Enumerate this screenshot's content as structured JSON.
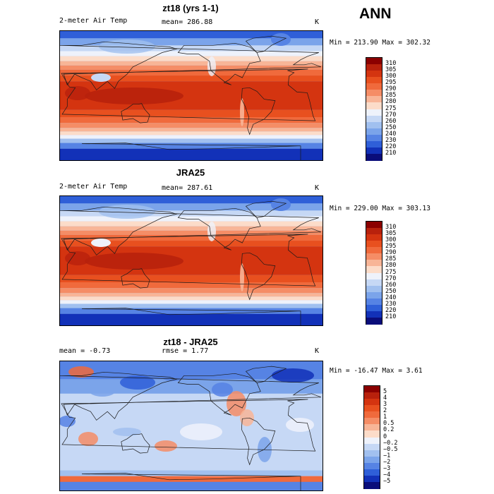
{
  "season": "ANN",
  "panels": [
    {
      "id": "model",
      "title": "zt18 (yrs 1-1)",
      "left_text": "2-meter Air Temp",
      "mean_text": "mean= 286.88",
      "rmse_text": "",
      "unit": "K",
      "minmax": "Min = 213.90 Max = 302.32",
      "levels": [
        "310",
        "305",
        "300",
        "295",
        "290",
        "285",
        "280",
        "275",
        "270",
        "260",
        "250",
        "240",
        "230",
        "220",
        "210"
      ],
      "colors": [
        "#8b0000",
        "#b8210c",
        "#d43410",
        "#e8501f",
        "#f06a3c",
        "#f58d66",
        "#f8b597",
        "#fcdcc9",
        "#eef2fb",
        "#c6d8f5",
        "#a1c0ef",
        "#7ba4ea",
        "#5683e4",
        "#2f5fd8",
        "#1231b8",
        "#0a0d7a"
      ]
    },
    {
      "id": "obs",
      "title": "JRA25",
      "left_text": "2-meter Air Temp",
      "mean_text": "mean= 287.61",
      "rmse_text": "",
      "unit": "K",
      "minmax": "Min = 229.00 Max = 303.13",
      "levels": [
        "310",
        "305",
        "300",
        "295",
        "290",
        "285",
        "280",
        "275",
        "270",
        "260",
        "250",
        "240",
        "230",
        "220",
        "210"
      ],
      "colors": [
        "#8b0000",
        "#b8210c",
        "#d43410",
        "#e8501f",
        "#f06a3c",
        "#f58d66",
        "#f8b597",
        "#fcdcc9",
        "#eef2fb",
        "#c6d8f5",
        "#a1c0ef",
        "#7ba4ea",
        "#5683e4",
        "#2f5fd8",
        "#1231b8",
        "#0a0d7a"
      ]
    },
    {
      "id": "diff",
      "title": "zt18 - JRA25",
      "left_text": "mean =   -0.73",
      "mean_text": "rmse =   1.77",
      "rmse_text": "",
      "unit": "K",
      "minmax": "Min = -16.47 Max =   3.61",
      "levels": [
        "5",
        "4",
        "3",
        "2",
        "1",
        "0.5",
        "0.2",
        "0",
        "−0.2",
        "−0.5",
        "−1",
        "−2",
        "−3",
        "−4",
        "−5"
      ],
      "colors": [
        "#8b0000",
        "#b8210c",
        "#d43410",
        "#e8501f",
        "#f06a3c",
        "#f58d66",
        "#f8b597",
        "#fcdcc9",
        "#eef2fb",
        "#c6d8f5",
        "#a1c0ef",
        "#7ba4ea",
        "#5683e4",
        "#2f5fd8",
        "#1231b8",
        "#0a0d7a"
      ]
    }
  ]
}
